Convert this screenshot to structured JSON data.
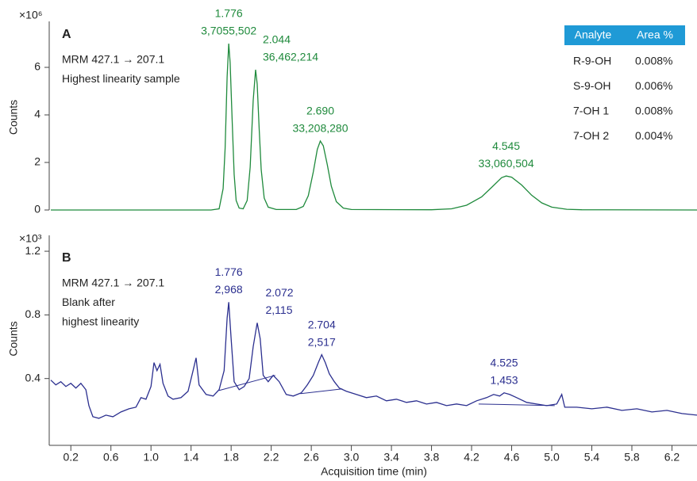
{
  "chart_data": [
    {
      "type": "line",
      "panel_label": "A",
      "scale_label": "×10⁶",
      "y_label": "Counts",
      "annotation": [
        "MRM 427.1 → 207.1",
        "Highest linearity sample"
      ],
      "color": "#1f8a3c",
      "xlim": [
        0,
        6.45
      ],
      "ylim": [
        0,
        7.8
      ],
      "yticks": [
        0,
        2,
        4,
        6
      ],
      "x": [
        0,
        1.6,
        1.68,
        1.72,
        1.74,
        1.76,
        1.776,
        1.79,
        1.81,
        1.83,
        1.85,
        1.88,
        1.92,
        1.96,
        1.99,
        2.02,
        2.044,
        2.06,
        2.08,
        2.1,
        2.13,
        2.17,
        2.25,
        2.45,
        2.52,
        2.57,
        2.62,
        2.66,
        2.69,
        2.72,
        2.76,
        2.8,
        2.85,
        2.92,
        3.0,
        3.8,
        4.0,
        4.15,
        4.3,
        4.4,
        4.5,
        4.545,
        4.6,
        4.7,
        4.8,
        4.9,
        5.0,
        5.15,
        5.3,
        6.45
      ],
      "values": [
        0,
        0,
        0.05,
        0.9,
        2.6,
        5.6,
        7.0,
        6.2,
        3.8,
        1.5,
        0.4,
        0.08,
        0.05,
        0.4,
        1.8,
        4.6,
        5.9,
        5.3,
        3.4,
        1.7,
        0.5,
        0.12,
        0.02,
        0.02,
        0.15,
        0.6,
        1.6,
        2.55,
        2.9,
        2.7,
        1.9,
        1.0,
        0.35,
        0.08,
        0.02,
        0.01,
        0.05,
        0.2,
        0.55,
        0.95,
        1.36,
        1.43,
        1.38,
        1.05,
        0.62,
        0.3,
        0.12,
        0.03,
        0.01,
        0
      ],
      "peaks": [
        {
          "rt": {
            "value": 1.776,
            "label": "1.776"
          },
          "area": "3,7055,502"
        },
        {
          "rt": {
            "value": 2.044,
            "label": "2.044"
          },
          "area": "36,462,214"
        },
        {
          "rt": {
            "value": 2.69,
            "label": "2.690"
          },
          "area": "33,208,280"
        },
        {
          "rt": {
            "value": 4.545,
            "label": "4.545"
          },
          "area": "33,060,504"
        }
      ],
      "table": {
        "columns": [
          "Analyte",
          "Area %"
        ],
        "rows": [
          [
            "R-9-OH",
            "0.008%"
          ],
          [
            "S-9-OH",
            "0.006%"
          ],
          [
            "7-OH 1",
            "0.008%"
          ],
          [
            "7-OH 2",
            "0.004%"
          ]
        ]
      }
    },
    {
      "type": "line",
      "panel_label": "B",
      "scale_label": "×10³",
      "y_label": "Counts",
      "annotation": [
        "MRM 427.1 → 207.1",
        "Blank after",
        "highest linearity"
      ],
      "color": "#2b2f8f",
      "x_label": "Acquisition time (min)",
      "xlim": [
        0,
        6.45
      ],
      "ylim": [
        0.02,
        1.28
      ],
      "yticks": [
        0.4,
        0.8,
        1.2
      ],
      "xticks": [
        0.2,
        0.6,
        {
          "value": 1,
          "label": "1.0"
        },
        1.4,
        1.8,
        2.2,
        2.6,
        {
          "value": 3,
          "label": "3.0"
        },
        3.4,
        3.8,
        4.2,
        4.6,
        {
          "value": 5,
          "label": "5.0"
        },
        5.4,
        5.8,
        6.2
      ],
      "x": [
        0,
        0.05,
        0.1,
        0.15,
        0.2,
        0.25,
        0.3,
        0.35,
        0.38,
        0.42,
        0.48,
        0.55,
        0.62,
        0.7,
        0.78,
        0.85,
        0.9,
        0.95,
        1.0,
        1.03,
        1.06,
        1.09,
        1.12,
        1.17,
        1.22,
        1.3,
        1.37,
        1.42,
        1.45,
        1.48,
        1.55,
        1.62,
        1.68,
        1.73,
        1.76,
        1.776,
        1.8,
        1.83,
        1.88,
        1.93,
        1.98,
        2.02,
        2.06,
        2.09,
        2.12,
        2.17,
        2.22,
        2.28,
        2.35,
        2.42,
        2.5,
        2.56,
        2.62,
        2.67,
        2.704,
        2.74,
        2.78,
        2.83,
        2.88,
        2.95,
        3.05,
        3.15,
        3.25,
        3.35,
        3.45,
        3.55,
        3.65,
        3.75,
        3.85,
        3.95,
        4.05,
        4.15,
        4.25,
        4.35,
        4.42,
        4.48,
        4.525,
        4.58,
        4.65,
        4.75,
        4.85,
        4.95,
        5.05,
        5.1,
        5.13,
        5.25,
        5.4,
        5.55,
        5.7,
        5.85,
        6.0,
        6.15,
        6.3,
        6.45
      ],
      "values": [
        0.39,
        0.36,
        0.38,
        0.35,
        0.37,
        0.34,
        0.37,
        0.33,
        0.23,
        0.16,
        0.15,
        0.17,
        0.16,
        0.19,
        0.21,
        0.22,
        0.28,
        0.27,
        0.35,
        0.5,
        0.45,
        0.49,
        0.37,
        0.29,
        0.27,
        0.28,
        0.32,
        0.45,
        0.53,
        0.36,
        0.3,
        0.29,
        0.33,
        0.45,
        0.78,
        0.88,
        0.65,
        0.38,
        0.33,
        0.35,
        0.4,
        0.6,
        0.75,
        0.65,
        0.42,
        0.38,
        0.42,
        0.38,
        0.3,
        0.29,
        0.31,
        0.36,
        0.42,
        0.5,
        0.55,
        0.5,
        0.43,
        0.38,
        0.34,
        0.32,
        0.3,
        0.28,
        0.29,
        0.26,
        0.27,
        0.25,
        0.26,
        0.24,
        0.25,
        0.23,
        0.24,
        0.23,
        0.26,
        0.28,
        0.3,
        0.29,
        0.31,
        0.3,
        0.28,
        0.25,
        0.24,
        0.23,
        0.24,
        0.3,
        0.22,
        0.22,
        0.21,
        0.22,
        0.2,
        0.21,
        0.19,
        0.2,
        0.18,
        0.17
      ],
      "baselines": [
        {
          "x": [
            1.68,
            2.24
          ],
          "y": [
            0.325,
            0.42
          ]
        },
        {
          "x": [
            2.49,
            2.91
          ],
          "y": [
            0.305,
            0.335
          ]
        },
        {
          "x": [
            4.27,
            5.03
          ],
          "y": [
            0.24,
            0.23
          ]
        }
      ],
      "peaks": [
        {
          "rt": {
            "value": 1.776,
            "label": "1.776"
          },
          "area": "2,968"
        },
        {
          "rt": {
            "value": 2.072,
            "label": "2.072"
          },
          "area": "2,115"
        },
        {
          "rt": {
            "value": 2.704,
            "label": "2.704"
          },
          "area": "2,517"
        },
        {
          "rt": {
            "value": 4.525,
            "label": "4.525"
          },
          "area": "1,453"
        }
      ]
    }
  ]
}
